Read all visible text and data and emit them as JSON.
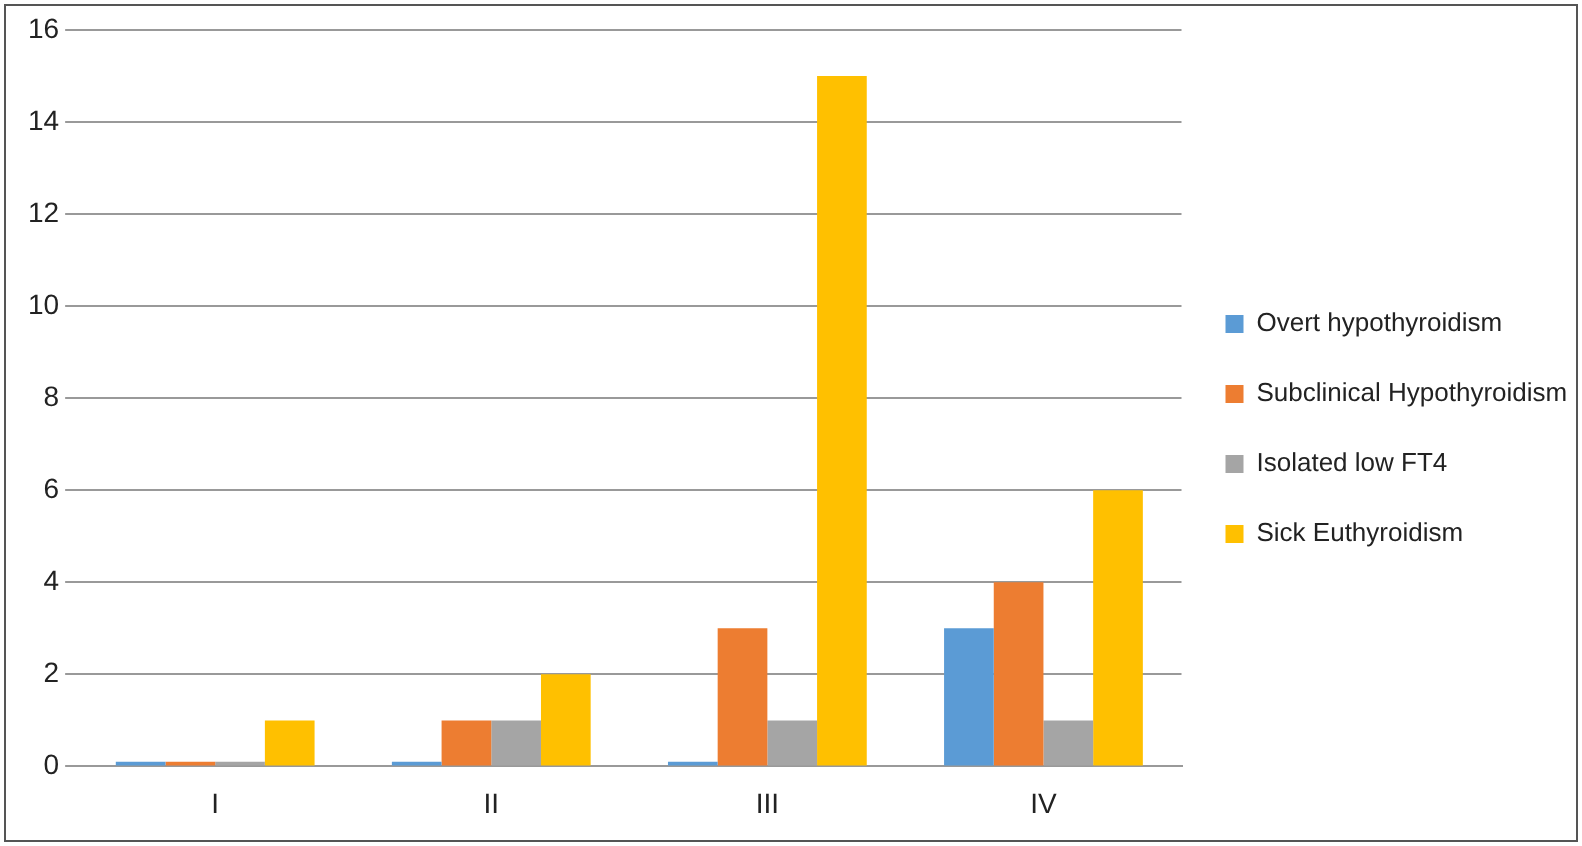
{
  "chart_data": {
    "type": "bar",
    "categories": [
      "I",
      "II",
      "III",
      "IV"
    ],
    "series": [
      {
        "name": "Overt hypothyroidism",
        "color": "#5b9bd5",
        "values": [
          0.1,
          0.1,
          0.1,
          3
        ]
      },
      {
        "name": "Subclinical Hypothyroidism",
        "color": "#ed7d31",
        "values": [
          0.1,
          1,
          3,
          4
        ]
      },
      {
        "name": "Isolated low FT4",
        "color": "#a5a5a5",
        "values": [
          0.1,
          1,
          1,
          1
        ]
      },
      {
        "name": "Sick Euthyroidism",
        "color": "#ffc000",
        "values": [
          1,
          2,
          15,
          6
        ]
      }
    ],
    "ylim": [
      0,
      16
    ],
    "yticks": [
      0,
      2,
      4,
      6,
      8,
      10,
      12,
      14,
      16
    ],
    "grid": "y",
    "legend": "right"
  }
}
